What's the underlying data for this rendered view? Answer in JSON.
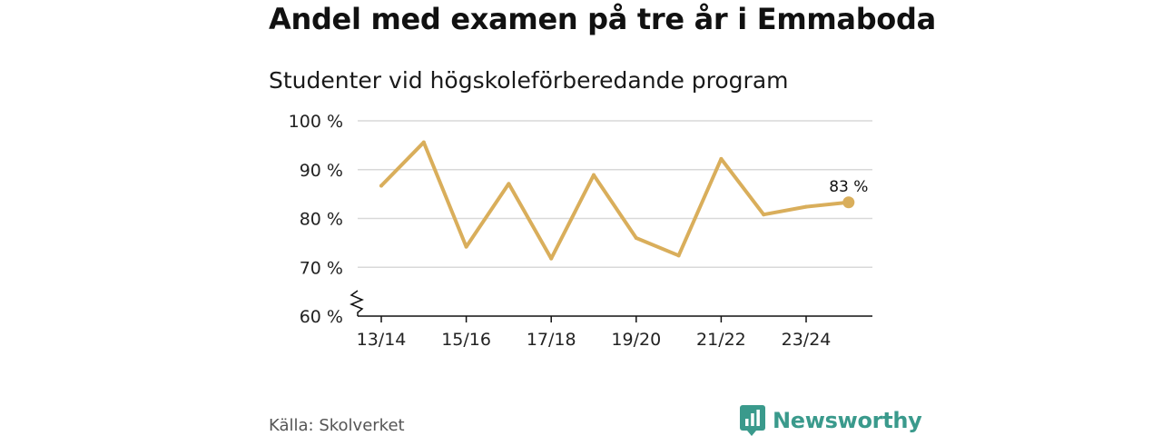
{
  "colors": {
    "series": "#d9ae5b",
    "grid": "#d9d9d9",
    "axis": "#111111",
    "brand": "#3a9a8c"
  },
  "chart_data": {
    "type": "line",
    "title": "Andel med examen på tre år i Emmaboda",
    "subtitle": "Studenter vid högskoleförberedande program",
    "source": "Källa: Skolverket",
    "x": [
      "13/14",
      "14/15",
      "15/16",
      "16/17",
      "17/18",
      "18/19",
      "19/20",
      "20/21",
      "21/22",
      "22/23",
      "23/24",
      "24/25"
    ],
    "x_tick_labels": [
      "13/14",
      "15/16",
      "17/18",
      "19/20",
      "21/22",
      "23/24"
    ],
    "series": [
      {
        "values": [
          86.7,
          95.6,
          74.2,
          87.1,
          71.8,
          88.9,
          76.0,
          72.4,
          92.2,
          80.8,
          82.4,
          83.3
        ]
      }
    ],
    "ylim": [
      60,
      100
    ],
    "y_ticks": [
      60,
      70,
      80,
      90,
      100
    ],
    "y_tick_labels": [
      "60 %",
      "70 %",
      "80 %",
      "90 %",
      "100 %"
    ],
    "axis_break": true,
    "grid": true,
    "end_label": "83 %"
  },
  "brand": {
    "name": "Newsworthy",
    "icon": "bar-chart-logo-icon"
  }
}
